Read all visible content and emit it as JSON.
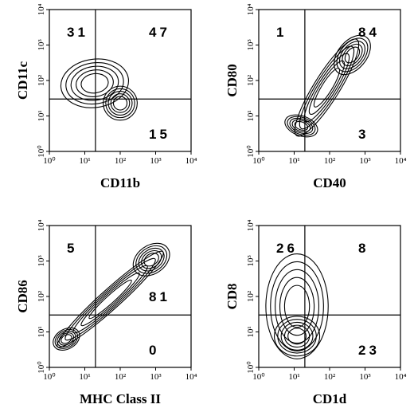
{
  "chart_data": [
    {
      "type": "contour",
      "x_label": "CD11b",
      "y_label": "CD11c",
      "log": true,
      "xlim": [
        1,
        10000
      ],
      "ylim": [
        1,
        10000
      ],
      "xticks": [
        {
          "value": 1,
          "label": "10⁰"
        },
        {
          "value": 10,
          "label": "10¹"
        },
        {
          "value": 100,
          "label": "10²"
        },
        {
          "value": 1000,
          "label": "10³"
        },
        {
          "value": 10000,
          "label": "10⁴"
        }
      ],
      "yticks": [
        {
          "value": 1,
          "label": "10⁰"
        },
        {
          "value": 10,
          "label": "10¹"
        },
        {
          "value": 100,
          "label": "10²"
        },
        {
          "value": 1000,
          "label": "10³"
        },
        {
          "value": 10000,
          "label": "10⁴"
        }
      ],
      "x_gate": 20,
      "y_gate": 30,
      "quadrant_values": {
        "upper_left": 31,
        "upper_right": 47,
        "lower_right": 15
      }
    },
    {
      "type": "contour",
      "x_label": "CD40",
      "y_label": "CD80",
      "log": true,
      "xlim": [
        1,
        10000
      ],
      "ylim": [
        1,
        10000
      ],
      "xticks": [
        {
          "value": 1,
          "label": "10⁰"
        },
        {
          "value": 10,
          "label": "10¹"
        },
        {
          "value": 100,
          "label": "10²"
        },
        {
          "value": 1000,
          "label": "10³"
        },
        {
          "value": 10000,
          "label": "10⁴"
        }
      ],
      "yticks": [
        {
          "value": 1,
          "label": "10⁰"
        },
        {
          "value": 10,
          "label": "10¹"
        },
        {
          "value": 100,
          "label": "10²"
        },
        {
          "value": 1000,
          "label": "10³"
        },
        {
          "value": 10000,
          "label": "10⁴"
        }
      ],
      "x_gate": 20,
      "y_gate": 30,
      "quadrant_values": {
        "upper_left": 1,
        "upper_right": 84,
        "lower_right": 3
      }
    },
    {
      "type": "contour",
      "x_label": "MHC Class II",
      "y_label": "CD86",
      "log": true,
      "xlim": [
        1,
        10000
      ],
      "ylim": [
        1,
        10000
      ],
      "xticks": [
        {
          "value": 1,
          "label": "10⁰"
        },
        {
          "value": 10,
          "label": "10¹"
        },
        {
          "value": 100,
          "label": "10²"
        },
        {
          "value": 1000,
          "label": "10³"
        },
        {
          "value": 10000,
          "label": "10⁴"
        }
      ],
      "yticks": [
        {
          "value": 1,
          "label": "10⁰"
        },
        {
          "value": 10,
          "label": "10¹"
        },
        {
          "value": 100,
          "label": "10²"
        },
        {
          "value": 1000,
          "label": "10³"
        },
        {
          "value": 10000,
          "label": "10⁴"
        }
      ],
      "x_gate": 20,
      "y_gate": 30,
      "quadrant_values": {
        "upper_left": 5,
        "upper_right": 81,
        "lower_right": 0
      }
    },
    {
      "type": "contour",
      "x_label": "CD1d",
      "y_label": "CD8",
      "log": true,
      "xlim": [
        1,
        10000
      ],
      "ylim": [
        1,
        10000
      ],
      "xticks": [
        {
          "value": 1,
          "label": "10⁰"
        },
        {
          "value": 10,
          "label": "10¹"
        },
        {
          "value": 100,
          "label": "10²"
        },
        {
          "value": 1000,
          "label": "10³"
        },
        {
          "value": 10000,
          "label": "10⁴"
        }
      ],
      "yticks": [
        {
          "value": 1,
          "label": "10⁰"
        },
        {
          "value": 10,
          "label": "10¹"
        },
        {
          "value": 100,
          "label": "10²"
        },
        {
          "value": 1000,
          "label": "10³"
        },
        {
          "value": 10000,
          "label": "10⁴"
        }
      ],
      "x_gate": 20,
      "y_gate": 30,
      "quadrant_values": {
        "upper_left": 26,
        "upper_right": 8,
        "lower_right": 23
      }
    }
  ]
}
